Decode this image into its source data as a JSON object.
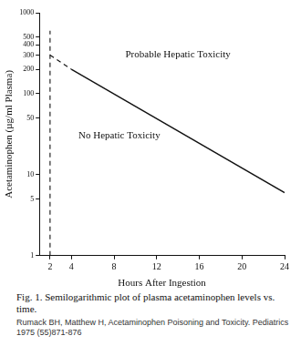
{
  "chart_data": {
    "type": "line",
    "x_label": "Hours After Ingestion",
    "y_label": "Acetaminophen (µg/ml Plasma)",
    "caption": "Fig. 1. Semilogarithmic plot of plasma acetaminophen levels vs. time.",
    "source": "Rumack BH, Matthew H, Acetaminophen Poisoning and Toxicity. Pediatrics 1975 (55)871-876",
    "log": "y",
    "grid": false,
    "xlim": [
      1,
      24
    ],
    "xticks": [
      2,
      4,
      8,
      12,
      16,
      20,
      24
    ],
    "ylim": [
      1,
      1000
    ],
    "yticks": [
      1,
      5,
      10,
      50,
      100,
      200,
      300,
      400,
      500,
      1000
    ],
    "series": [
      {
        "x": [
          4,
          24
        ],
        "values": [
          200,
          6
        ],
        "color": "#111111",
        "line_style": "solid"
      },
      {
        "x": [
          2,
          4
        ],
        "values": [
          300,
          200
        ],
        "color": "#111111",
        "line_style": "dashed"
      },
      {
        "x": [
          2,
          2
        ],
        "values": [
          1,
          600
        ],
        "color": "#111111",
        "line_style": "dashed"
      }
    ],
    "annotations": [
      {
        "text": "Probable Hepatic Toxicity",
        "x": 14,
        "y": 300
      },
      {
        "text": "No Hepatic Toxicity",
        "x": 8.5,
        "y": 30
      }
    ]
  }
}
